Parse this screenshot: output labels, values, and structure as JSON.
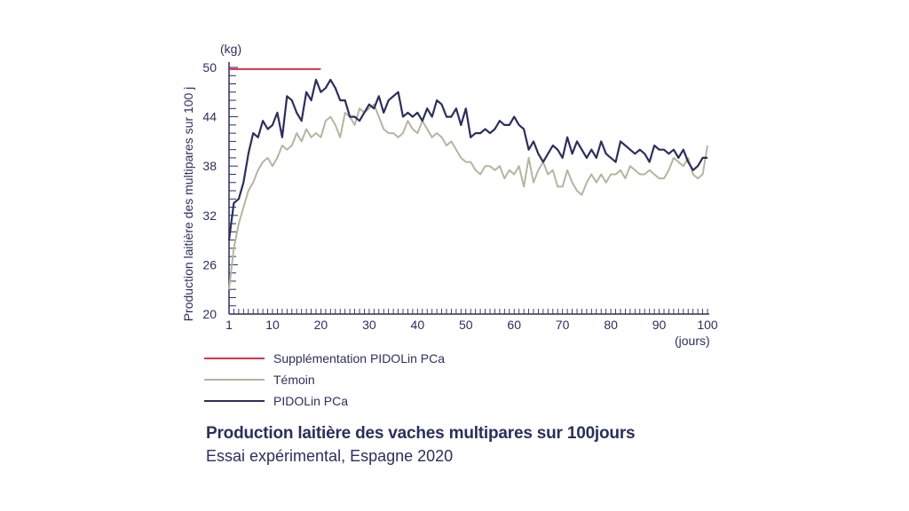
{
  "chart_data": {
    "type": "line",
    "title": "Production laitière des vaches multipares sur 100jours",
    "subtitle": "Essai expérimental, Espagne 2020",
    "ylabel": "Production laitière des multipares sur 100 j",
    "y_unit": "(kg)",
    "x_unit": "(jours)",
    "ylim": [
      20,
      50
    ],
    "xlim": [
      1,
      100
    ],
    "y_ticks": [
      20,
      26,
      32,
      38,
      44,
      50
    ],
    "x_ticks": [
      1,
      10,
      20,
      30,
      40,
      50,
      60,
      70,
      80,
      90,
      100
    ],
    "supplementation": {
      "name": "Supplémentation PIDOLin PCa",
      "color": "#d9324a",
      "x_start": 1,
      "x_end": 20,
      "y": 49.8
    },
    "series": [
      {
        "name": "Témoin",
        "color": "#b5b5a0",
        "x": [
          1,
          2,
          3,
          4,
          5,
          6,
          7,
          8,
          9,
          10,
          11,
          12,
          13,
          14,
          15,
          16,
          17,
          18,
          19,
          20,
          21,
          22,
          23,
          24,
          25,
          26,
          27,
          28,
          29,
          30,
          31,
          32,
          33,
          34,
          35,
          36,
          37,
          38,
          39,
          40,
          41,
          42,
          43,
          44,
          45,
          46,
          47,
          48,
          49,
          50,
          51,
          52,
          53,
          54,
          55,
          56,
          57,
          58,
          59,
          60,
          61,
          62,
          63,
          64,
          65,
          66,
          67,
          68,
          69,
          70,
          71,
          72,
          73,
          74,
          75,
          76,
          77,
          78,
          79,
          80,
          81,
          82,
          83,
          84,
          85,
          86,
          87,
          88,
          89,
          90,
          91,
          92,
          93,
          94,
          95,
          96,
          97,
          98,
          99,
          100
        ],
        "values": [
          23,
          28,
          31,
          33,
          35,
          36,
          37.5,
          38.5,
          39,
          38,
          39,
          40.5,
          40,
          40.5,
          42,
          41,
          42.5,
          41.5,
          42,
          41.5,
          43.5,
          44,
          43,
          41.5,
          44.5,
          44,
          43,
          45,
          44.5,
          45,
          45.5,
          44,
          42.5,
          42,
          42,
          41.5,
          42,
          43.5,
          42.5,
          42,
          43.5,
          42.5,
          41.5,
          42,
          41.5,
          40.5,
          41,
          40,
          39,
          38.5,
          38.5,
          37.5,
          37,
          38,
          38,
          37.5,
          38,
          36.5,
          37.5,
          37,
          38,
          35.5,
          39,
          36,
          37.5,
          38.5,
          37,
          37.5,
          35.5,
          35.5,
          37.5,
          36,
          35,
          34.5,
          36,
          37,
          36,
          37,
          36,
          37,
          37,
          37.5,
          36.5,
          38,
          37.5,
          37,
          37,
          37.5,
          37,
          36.5,
          36.5,
          37.5,
          39,
          38.5,
          38,
          39,
          37,
          36.5,
          37,
          40.5
        ]
      },
      {
        "name": "PIDOLin PCa",
        "color": "#2b2f5c",
        "x": [
          1,
          2,
          3,
          4,
          5,
          6,
          7,
          8,
          9,
          10,
          11,
          12,
          13,
          14,
          15,
          16,
          17,
          18,
          19,
          20,
          21,
          22,
          23,
          24,
          25,
          26,
          27,
          28,
          29,
          30,
          31,
          32,
          33,
          34,
          35,
          36,
          37,
          38,
          39,
          40,
          41,
          42,
          43,
          44,
          45,
          46,
          47,
          48,
          49,
          50,
          51,
          52,
          53,
          54,
          55,
          56,
          57,
          58,
          59,
          60,
          61,
          62,
          63,
          64,
          65,
          66,
          67,
          68,
          69,
          70,
          71,
          72,
          73,
          74,
          75,
          76,
          77,
          78,
          79,
          80,
          81,
          82,
          83,
          84,
          85,
          86,
          87,
          88,
          89,
          90,
          91,
          92,
          93,
          94,
          95,
          96,
          97,
          98,
          99,
          100
        ],
        "values": [
          29,
          33.5,
          34,
          36,
          39.5,
          42,
          41.5,
          43.5,
          42.5,
          43,
          44.5,
          41.5,
          46.5,
          46,
          44.5,
          43.5,
          47,
          46,
          48.5,
          47,
          47.5,
          48.5,
          47.5,
          46,
          46,
          44,
          44,
          43.5,
          44.5,
          45.5,
          45,
          46.5,
          44.5,
          46,
          46.5,
          47,
          44,
          44.5,
          44,
          44.5,
          43.5,
          45,
          44,
          46,
          45.5,
          44,
          44,
          45,
          43,
          45,
          41.5,
          42,
          42,
          42.5,
          42,
          42.5,
          43.5,
          43,
          43,
          44,
          43,
          42.5,
          40,
          41,
          39.5,
          38.5,
          39.5,
          40.5,
          40,
          39,
          41.5,
          39.5,
          41,
          40,
          39,
          40,
          39,
          41,
          39.5,
          39,
          38.5,
          41,
          40.5,
          40,
          39.5,
          40,
          39.5,
          38.5,
          40.5,
          40,
          40,
          39.5,
          40,
          39,
          40,
          38.5,
          37.5,
          38,
          39,
          39
        ]
      }
    ],
    "legend_placement": "bottom-left",
    "grid": false
  }
}
